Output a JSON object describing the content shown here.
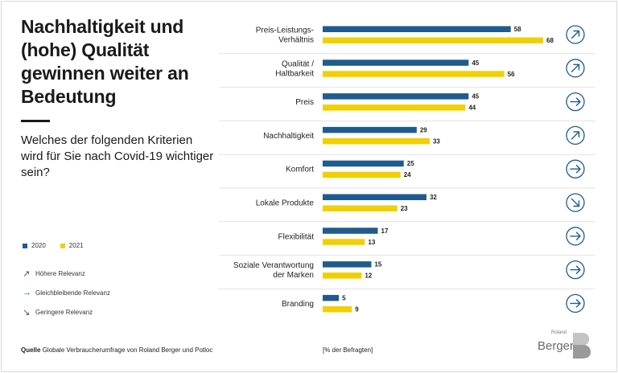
{
  "title": "Nachhaltigkeit und (hohe) Qualität gewinnen weiter an Bedeutung",
  "question": "Welches der folgenden Kriterien wird für Sie nach Covid-19 wichtiger sein?",
  "legend": {
    "series_2020": "2020",
    "series_2021": "2021",
    "trend_up": "Höhere Relevanz",
    "trend_same": "Gleichbleibende Relevanz",
    "trend_down": "Geringere Relevanz"
  },
  "source": {
    "label": "Quelle",
    "text": "Globale Verbraucherumfrage von Roland Berger und Potloc"
  },
  "unit_note": "[% der Befragten]",
  "logo": {
    "small": "Roland",
    "name": "Berger"
  },
  "colors": {
    "series_2020": "#1f5b8e",
    "series_2021": "#f0d000",
    "trend_icon": "#1f5b8e"
  },
  "chart_data": {
    "type": "bar",
    "orientation": "horizontal",
    "categories": [
      [
        "Preis-Leistungs-",
        "Verhältnis"
      ],
      [
        "Qualität /",
        "Haltbarkeit"
      ],
      [
        "Preis"
      ],
      [
        "Nachhaltigkeit"
      ],
      [
        "Komfort"
      ],
      [
        "Lokale Produkte"
      ],
      [
        "Flexibilität"
      ],
      [
        "Soziale Verantwortung",
        "der Marken"
      ],
      [
        "Branding"
      ]
    ],
    "series": [
      {
        "name": "2020",
        "values": [
          58,
          45,
          45,
          29,
          25,
          32,
          17,
          15,
          5
        ]
      },
      {
        "name": "2021",
        "values": [
          68,
          56,
          44,
          33,
          24,
          23,
          13,
          12,
          9
        ]
      }
    ],
    "trend": [
      "up",
      "up",
      "same",
      "up",
      "same",
      "down",
      "same",
      "same",
      "same"
    ],
    "unit": "% der Befragten",
    "xlim": [
      0,
      68
    ]
  }
}
